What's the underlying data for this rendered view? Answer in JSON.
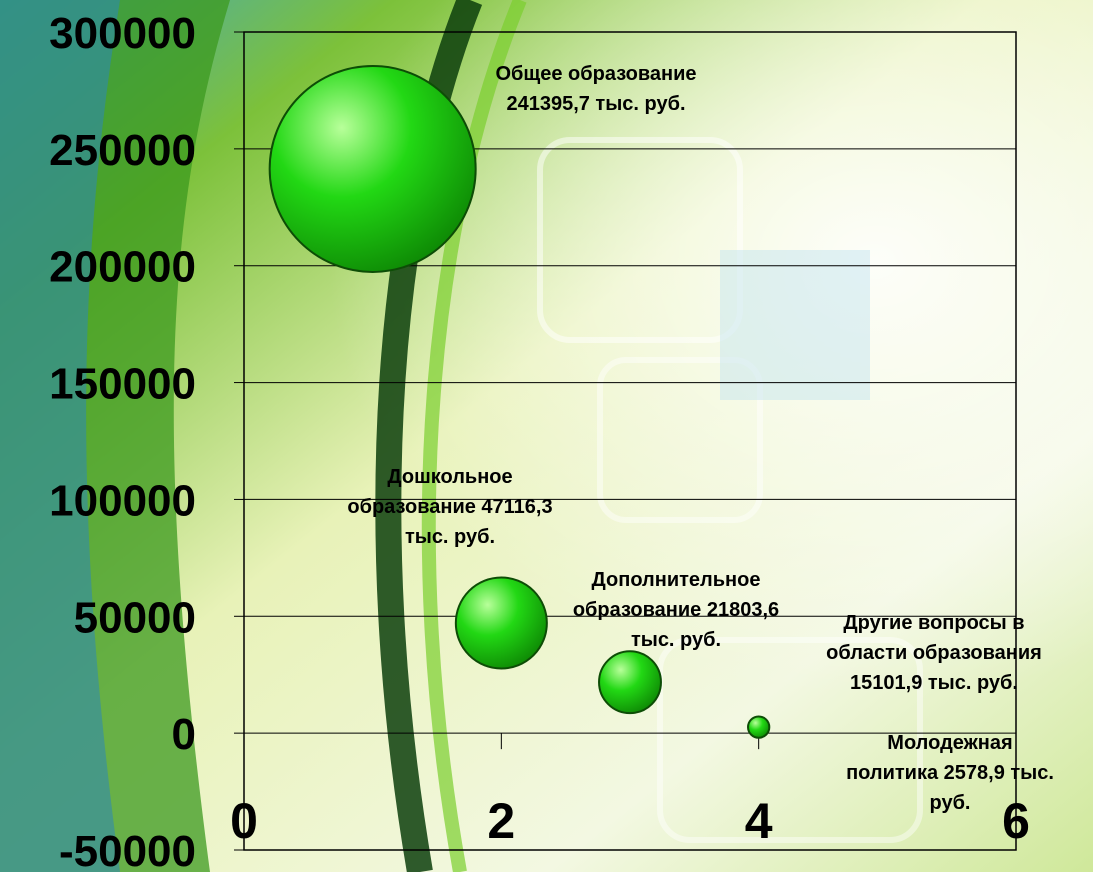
{
  "chart_data": {
    "type": "bubble",
    "title": "",
    "xlabel": "",
    "ylabel": "",
    "xlim": [
      0,
      6
    ],
    "ylim": [
      -50000,
      300000
    ],
    "x_ticks": [
      "0",
      "2",
      "4",
      "6"
    ],
    "y_ticks": [
      "300000",
      "250000",
      "200000",
      "150000",
      "100000",
      "50000",
      "0",
      "-50000"
    ],
    "grid": "horizontal",
    "points": [
      {
        "x": 1,
        "y": 241395.7,
        "size": 241395.7,
        "label": [
          "Общее образование",
          "241395,7 тыс. руб."
        ]
      },
      {
        "x": 2,
        "y": 47116.3,
        "size": 47116.3,
        "label": [
          "Дошкольное",
          "образование 47116,3",
          "тыс. руб."
        ]
      },
      {
        "x": 3,
        "y": 21803.6,
        "size": 21803.6,
        "label": [
          "Дополнительное",
          "образование 21803,6",
          "тыс. руб."
        ]
      },
      {
        "x": 4,
        "y": 2578.9,
        "size": 2578.9,
        "label": [
          "Молодежная",
          "политика 2578,9 тыс.",
          "руб."
        ]
      },
      {
        "x": 5,
        "y": 15101.9,
        "size": 0,
        "label": [
          "Другие вопросы в",
          "области образования",
          "15101,9 тыс. руб."
        ]
      }
    ],
    "bubble_color": "#22d814",
    "bubble_highlight": "#b8ff9a",
    "bubble_edge": "#0d4d06"
  }
}
